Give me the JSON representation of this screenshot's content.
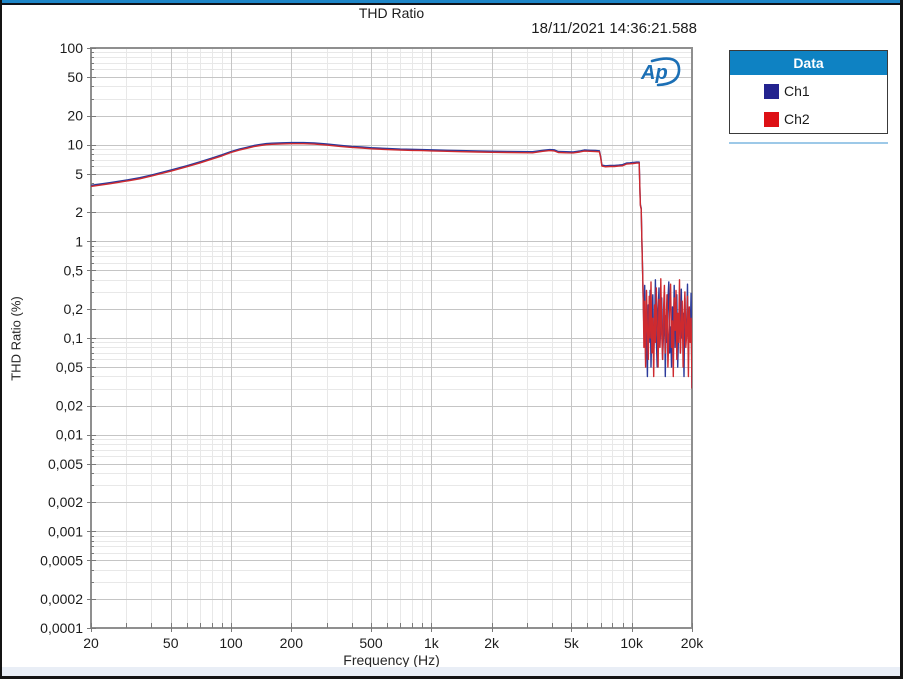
{
  "header": {
    "title": "THD Ratio",
    "timestamp": "18/11/2021 14:36:21.588"
  },
  "logo": {
    "text": "Ap",
    "color": "#1B6FB5"
  },
  "legend": {
    "title": "Data",
    "header_bg": "#0E82C3",
    "items": [
      {
        "label": "Ch1",
        "color": "#23238F"
      },
      {
        "label": "Ch2",
        "color": "#DD1015"
      }
    ]
  },
  "chart_data": {
    "type": "line",
    "title": "THD Ratio",
    "xlabel": "Frequency (Hz)",
    "ylabel": "THD Ratio (%)",
    "x_scale": "log",
    "y_scale": "log",
    "xlim": [
      20,
      20000
    ],
    "ylim": [
      0.0001,
      100
    ],
    "grid": true,
    "legend_position": "outside-top-right",
    "colors": {
      "major_grid": "#c5c5c5",
      "minor_grid": "#e8e8e8",
      "frame": "#8f8f8f",
      "tick": "#7a7a7a",
      "text": "#1c1c1c"
    },
    "x_ticks": [
      {
        "v": 20,
        "label": "20"
      },
      {
        "v": 50,
        "label": "50"
      },
      {
        "v": 100,
        "label": "100"
      },
      {
        "v": 200,
        "label": "200"
      },
      {
        "v": 500,
        "label": "500"
      },
      {
        "v": 1000,
        "label": "1k"
      },
      {
        "v": 2000,
        "label": "2k"
      },
      {
        "v": 5000,
        "label": "5k"
      },
      {
        "v": 10000,
        "label": "10k"
      },
      {
        "v": 20000,
        "label": "20k"
      }
    ],
    "y_ticks": [
      {
        "v": 100,
        "label": "100"
      },
      {
        "v": 50,
        "label": "50"
      },
      {
        "v": 20,
        "label": "20"
      },
      {
        "v": 10,
        "label": "10"
      },
      {
        "v": 5,
        "label": "5"
      },
      {
        "v": 2,
        "label": "2"
      },
      {
        "v": 1,
        "label": "1"
      },
      {
        "v": 0.5,
        "label": "0,5"
      },
      {
        "v": 0.2,
        "label": "0,2"
      },
      {
        "v": 0.1,
        "label": "0,1"
      },
      {
        "v": 0.05,
        "label": "0,05"
      },
      {
        "v": 0.02,
        "label": "0,02"
      },
      {
        "v": 0.01,
        "label": "0,01"
      },
      {
        "v": 0.005,
        "label": "0,005"
      },
      {
        "v": 0.002,
        "label": "0,002"
      },
      {
        "v": 0.001,
        "label": "0,001"
      },
      {
        "v": 0.0005,
        "label": "0,0005"
      },
      {
        "v": 0.0002,
        "label": "0,0002"
      },
      {
        "v": 0.0001,
        "label": "0,0001"
      }
    ],
    "series": [
      {
        "name": "Ch1",
        "color": "#2B3A9B",
        "smooth_points": [
          [
            20,
            3.8
          ],
          [
            25,
            4.05
          ],
          [
            30,
            4.3
          ],
          [
            35,
            4.55
          ],
          [
            40,
            4.85
          ],
          [
            50,
            5.45
          ],
          [
            60,
            6.05
          ],
          [
            70,
            6.65
          ],
          [
            80,
            7.25
          ],
          [
            90,
            7.85
          ],
          [
            100,
            8.5
          ],
          [
            110,
            9.0
          ],
          [
            120,
            9.4
          ],
          [
            130,
            9.8
          ],
          [
            140,
            10.05
          ],
          [
            150,
            10.25
          ],
          [
            160,
            10.35
          ],
          [
            180,
            10.45
          ],
          [
            200,
            10.5
          ],
          [
            230,
            10.5
          ],
          [
            260,
            10.4
          ],
          [
            300,
            10.15
          ],
          [
            350,
            9.85
          ],
          [
            400,
            9.6
          ],
          [
            450,
            9.45
          ],
          [
            500,
            9.3
          ],
          [
            600,
            9.12
          ],
          [
            700,
            9.0
          ],
          [
            800,
            8.95
          ],
          [
            900,
            8.9
          ],
          [
            1000,
            8.85
          ],
          [
            1200,
            8.75
          ],
          [
            1400,
            8.68
          ],
          [
            1700,
            8.6
          ],
          [
            2000,
            8.55
          ],
          [
            2400,
            8.5
          ],
          [
            2800,
            8.47
          ],
          [
            3200,
            8.45
          ],
          [
            3600,
            8.75
          ],
          [
            3900,
            8.9
          ],
          [
            4100,
            8.85
          ],
          [
            4300,
            8.5
          ],
          [
            4700,
            8.45
          ],
          [
            5100,
            8.42
          ],
          [
            5500,
            8.6
          ],
          [
            5800,
            8.8
          ],
          [
            6200,
            8.75
          ],
          [
            6600,
            8.7
          ],
          [
            6900,
            8.65
          ],
          [
            7000,
            7.5
          ],
          [
            7100,
            6.15
          ],
          [
            7400,
            6.05
          ],
          [
            7800,
            6.1
          ],
          [
            8200,
            6.1
          ],
          [
            8600,
            6.15
          ],
          [
            9000,
            6.2
          ],
          [
            9400,
            6.45
          ],
          [
            9800,
            6.5
          ],
          [
            10200,
            6.55
          ],
          [
            10600,
            6.6
          ],
          [
            10900,
            6.6
          ],
          [
            11000,
            3.2
          ],
          [
            11050,
            2.4
          ],
          [
            11150,
            2.2
          ],
          [
            11250,
            1.0
          ],
          [
            11350,
            0.45
          ],
          [
            11450,
            0.18
          ]
        ],
        "noise": {
          "f_start": 11500,
          "f_end": 20000,
          "values": [
            0.12,
            0.35,
            0.06,
            0.18,
            0.04,
            0.22,
            0.09,
            0.31,
            0.05,
            0.15,
            0.28,
            0.07,
            0.12,
            0.4,
            0.1,
            0.05,
            0.19,
            0.33,
            0.08,
            0.14,
            0.26,
            0.06,
            0.11,
            0.3,
            0.04,
            0.17,
            0.09,
            0.24,
            0.38,
            0.07,
            0.13,
            0.05,
            0.21,
            0.1,
            0.35,
            0.08,
            0.16,
            0.28,
            0.05,
            0.12,
            0.23,
            0.07,
            0.32,
            0.1,
            0.18,
            0.04,
            0.26,
            0.09,
            0.15,
            0.36,
            0.06,
            0.2,
            0.11,
            0.29,
            0.03
          ]
        }
      },
      {
        "name": "Ch2",
        "color": "#CE2A2F",
        "smooth_points": [
          [
            20,
            3.7
          ],
          [
            25,
            3.95
          ],
          [
            30,
            4.2
          ],
          [
            35,
            4.44
          ],
          [
            40,
            4.73
          ],
          [
            50,
            5.31
          ],
          [
            60,
            5.9
          ],
          [
            70,
            6.48
          ],
          [
            80,
            7.07
          ],
          [
            90,
            7.65
          ],
          [
            100,
            8.29
          ],
          [
            110,
            8.78
          ],
          [
            120,
            9.17
          ],
          [
            130,
            9.56
          ],
          [
            140,
            9.8
          ],
          [
            150,
            9.99
          ],
          [
            160,
            10.09
          ],
          [
            180,
            10.19
          ],
          [
            200,
            10.24
          ],
          [
            230,
            10.24
          ],
          [
            260,
            10.14
          ],
          [
            300,
            9.9
          ],
          [
            350,
            9.6
          ],
          [
            400,
            9.36
          ],
          [
            450,
            9.21
          ],
          [
            500,
            9.07
          ],
          [
            600,
            8.89
          ],
          [
            700,
            8.78
          ],
          [
            800,
            8.73
          ],
          [
            900,
            8.68
          ],
          [
            1000,
            8.63
          ],
          [
            1200,
            8.53
          ],
          [
            1400,
            8.46
          ],
          [
            1700,
            8.39
          ],
          [
            2000,
            8.34
          ],
          [
            2400,
            8.29
          ],
          [
            2800,
            8.26
          ],
          [
            3200,
            8.24
          ],
          [
            3600,
            8.53
          ],
          [
            3900,
            8.68
          ],
          [
            4100,
            8.63
          ],
          [
            4300,
            8.29
          ],
          [
            4700,
            8.24
          ],
          [
            5100,
            8.21
          ],
          [
            5500,
            8.39
          ],
          [
            5800,
            8.58
          ],
          [
            6200,
            8.53
          ],
          [
            6600,
            8.48
          ],
          [
            6900,
            8.43
          ],
          [
            7000,
            7.31
          ],
          [
            7100,
            6.0
          ],
          [
            7400,
            5.9
          ],
          [
            7800,
            5.95
          ],
          [
            8200,
            5.95
          ],
          [
            8600,
            6.0
          ],
          [
            9000,
            6.05
          ],
          [
            9400,
            6.29
          ],
          [
            9800,
            6.34
          ],
          [
            10200,
            6.39
          ],
          [
            10600,
            6.44
          ],
          [
            10900,
            6.44
          ],
          [
            11000,
            3.12
          ],
          [
            11050,
            2.34
          ],
          [
            11150,
            2.15
          ],
          [
            11250,
            0.98
          ],
          [
            11350,
            0.44
          ],
          [
            11450,
            0.175
          ]
        ],
        "noise": {
          "f_start": 11500,
          "f_end": 20000,
          "values": [
            0.08,
            0.24,
            0.05,
            0.31,
            0.12,
            0.06,
            0.27,
            0.1,
            0.38,
            0.07,
            0.16,
            0.04,
            0.22,
            0.09,
            0.33,
            0.13,
            0.05,
            0.25,
            0.08,
            0.41,
            0.11,
            0.06,
            0.19,
            0.35,
            0.07,
            0.14,
            0.28,
            0.05,
            0.1,
            0.22,
            0.36,
            0.08,
            0.15,
            0.04,
            0.26,
            0.12,
            0.31,
            0.06,
            0.18,
            0.09,
            0.4,
            0.07,
            0.13,
            0.24,
            0.05,
            0.17,
            0.3,
            0.08,
            0.11,
            0.27,
            0.04,
            0.21,
            0.09,
            0.16,
            0.03
          ]
        }
      }
    ]
  }
}
